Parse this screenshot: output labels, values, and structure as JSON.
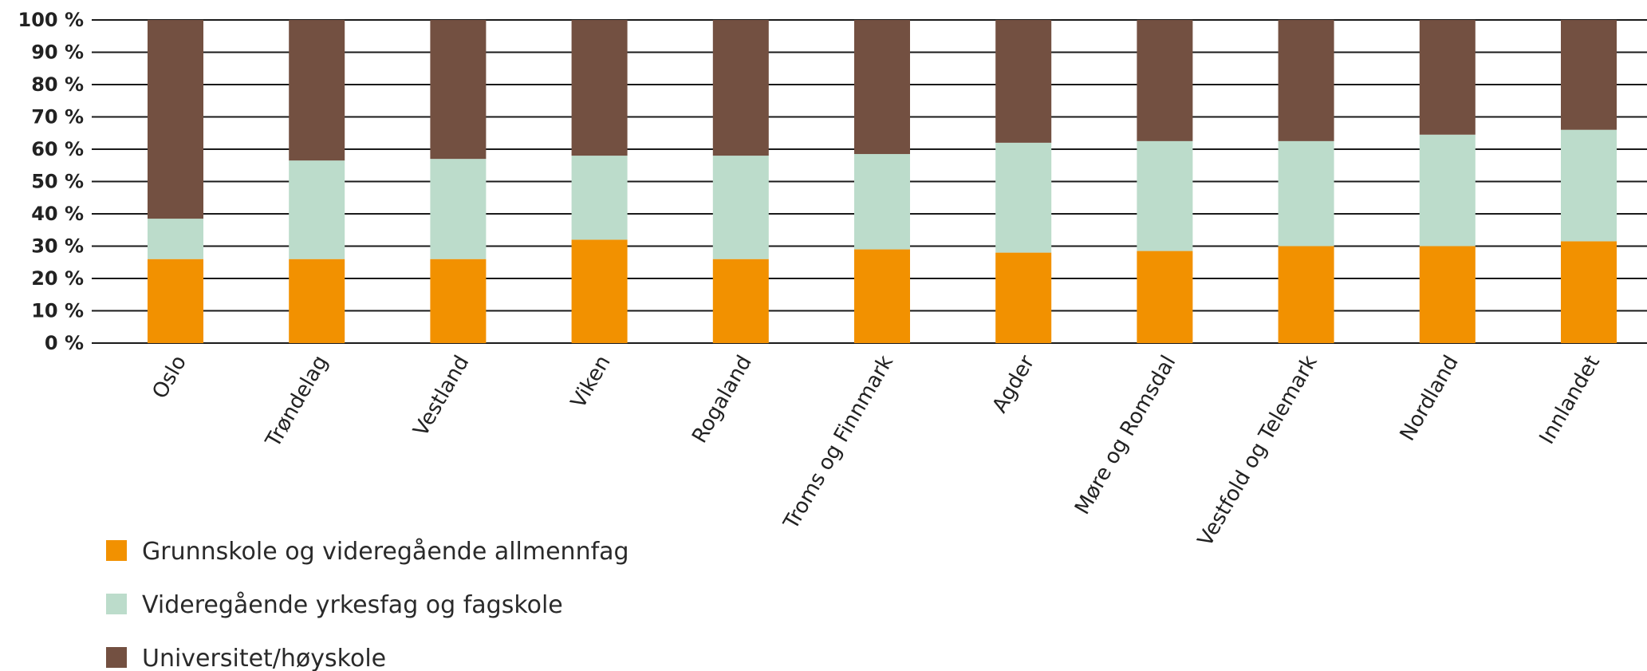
{
  "chart_data": {
    "type": "bar",
    "stacked": true,
    "categories": [
      "Oslo",
      "Trøndelag",
      "Vestland",
      "Viken",
      "Rogaland",
      "Troms og Finnmark",
      "Agder",
      "Møre og Romsdal",
      "Vestfold og Telemark",
      "Nordland",
      "Innlandet"
    ],
    "series": [
      {
        "name": "Grunnskole og videregående allmennfag",
        "color": "#F29100",
        "values": [
          26,
          26,
          26,
          32,
          26,
          29,
          28,
          28.5,
          30,
          30,
          31.5
        ]
      },
      {
        "name": "Videregående yrkesfag og fagskole",
        "color": "#BCDCCB",
        "values": [
          12.5,
          30.5,
          31,
          26,
          32,
          29.5,
          34,
          34,
          32.5,
          34.5,
          34.5
        ]
      },
      {
        "name": "Universitet/høyskole",
        "color": "#735041",
        "values": [
          61.5,
          43.5,
          43,
          42,
          42,
          41.5,
          38,
          37.5,
          37.5,
          35.5,
          34
        ]
      }
    ],
    "ylim": [
      0,
      100
    ],
    "y_ticks": [
      "0 %",
      "10 %",
      "20 %",
      "30 %",
      "40 %",
      "50 %",
      "60 %",
      "70 %",
      "80 %",
      "90 %",
      "100 %"
    ],
    "grid": true,
    "legend_position": "bottom-left",
    "xlabel": "",
    "ylabel": "",
    "title": ""
  }
}
